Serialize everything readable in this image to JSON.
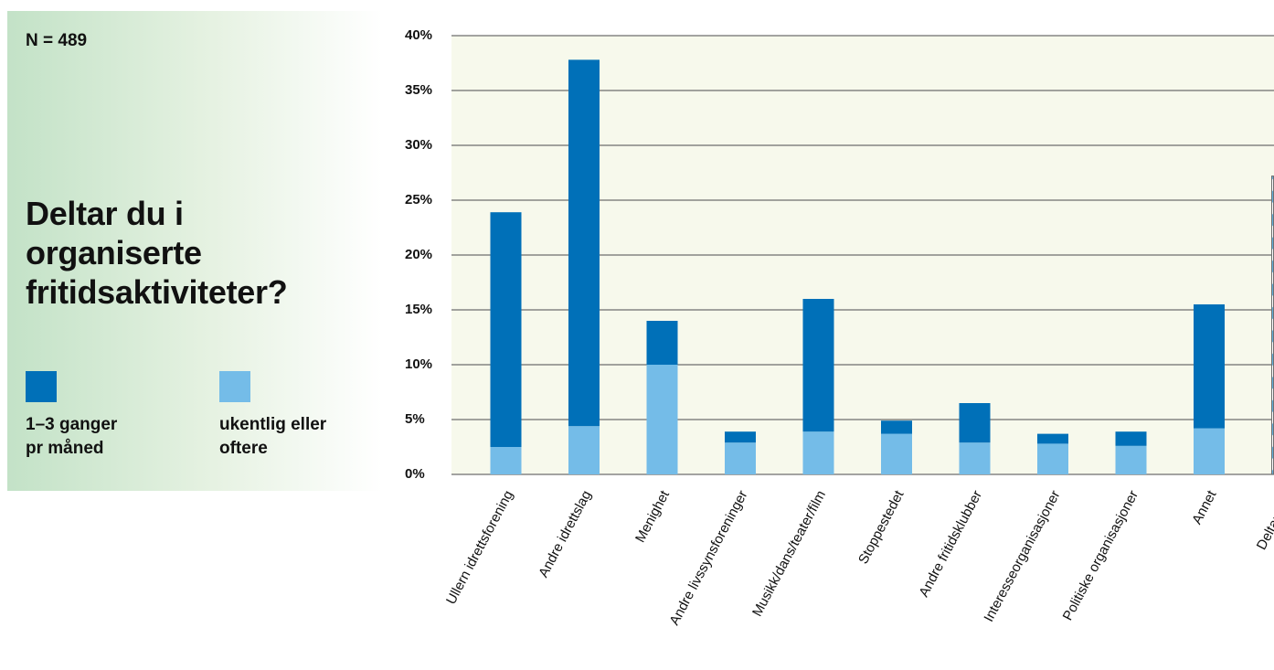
{
  "n_label": "N = 489",
  "question_lines": [
    "Deltar du i",
    "organiserte",
    "fritidsaktiviteter?"
  ],
  "legend": {
    "monthly": {
      "line1": "1–3 ganger",
      "line2": "pr måned"
    },
    "weekly": {
      "line1": "ukentlig eller",
      "line2": "oftere"
    }
  },
  "colors": {
    "monthly": "#0070b8",
    "weekly": "#74bce8",
    "plot_bg": "#f7f9ec",
    "grid": "#6e6e6e",
    "hatch_stripe": "#62b1e0"
  },
  "chart_data": {
    "type": "bar",
    "stacked": true,
    "categories": [
      "Ullern idrettsforening",
      "Andre idrettslag",
      "Menighet",
      "Andre livssynsforeninger",
      "Musikk/dans/teater/film",
      "Stoppestedet",
      "Andre fritidsklubber",
      "Interesseorganisasjoner",
      "Politiske organisasjoner",
      "Annet",
      "Deltar ikke"
    ],
    "series": [
      {
        "name": "ukentlig eller oftere",
        "values": [
          2.5,
          4.4,
          10.0,
          2.9,
          3.9,
          3.7,
          2.9,
          2.8,
          2.6,
          4.2,
          null
        ]
      },
      {
        "name": "1–3 ganger pr måned",
        "values": [
          21.4,
          33.4,
          4.0,
          1.0,
          12.1,
          1.2,
          3.6,
          0.9,
          1.3,
          11.3,
          null
        ]
      }
    ],
    "extra_bar": {
      "category": "Deltar ikke",
      "value": 27.2,
      "style": "hatched"
    },
    "ylim": [
      0,
      40
    ],
    "yticks": [
      0,
      5,
      10,
      15,
      20,
      25,
      30,
      35,
      40
    ],
    "ytick_labels": [
      "0%",
      "5%",
      "10%",
      "15%",
      "20%",
      "25%",
      "30%",
      "35%",
      "40%"
    ],
    "grid": true
  }
}
